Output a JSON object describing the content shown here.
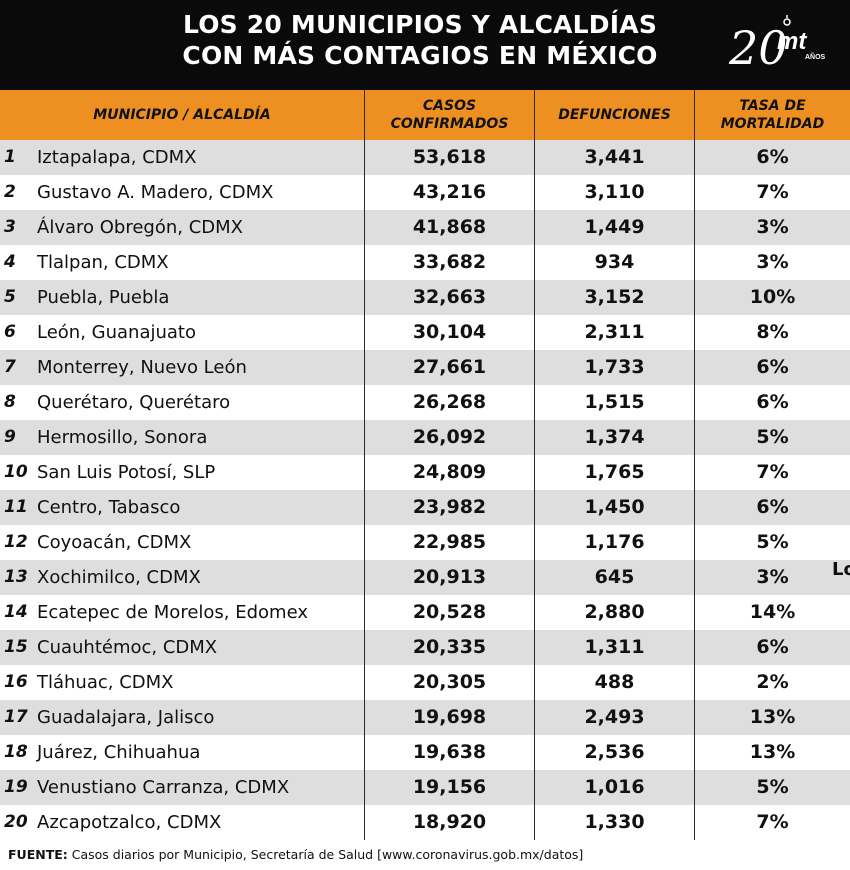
{
  "header": {
    "title_line1": "LOS 20 MUNICIPIOS Y ALCALDÍAS",
    "title_line2": "CON MÁS CONTAGIOS EN MÉXICO",
    "logo": {
      "number": "20",
      "brand": "mt",
      "caption": "AÑOS"
    }
  },
  "table": {
    "columns": [
      "MUNICIPIO / ALCALDÍA",
      "CASOS\nCONFIRMADOS",
      "DEFUNCIONES",
      "TASA DE\nMORTALIDAD"
    ],
    "rows": [
      {
        "rank": "1",
        "name": "Iztapalapa, CDMX",
        "cases": "53,618",
        "deaths": "3,441",
        "rate": "6%"
      },
      {
        "rank": "2",
        "name": "Gustavo A. Madero, CDMX",
        "cases": "43,216",
        "deaths": "3,110",
        "rate": "7%"
      },
      {
        "rank": "3",
        "name": "Álvaro Obregón, CDMX",
        "cases": "41,868",
        "deaths": "1,449",
        "rate": "3%"
      },
      {
        "rank": "4",
        "name": "Tlalpan, CDMX",
        "cases": "33,682",
        "deaths": "934",
        "rate": "3%"
      },
      {
        "rank": "5",
        "name": "Puebla, Puebla",
        "cases": "32,663",
        "deaths": "3,152",
        "rate": "10%"
      },
      {
        "rank": "6",
        "name": "León, Guanajuato",
        "cases": "30,104",
        "deaths": "2,311",
        "rate": "8%"
      },
      {
        "rank": "7",
        "name": "Monterrey, Nuevo León",
        "cases": "27,661",
        "deaths": "1,733",
        "rate": "6%"
      },
      {
        "rank": "8",
        "name": "Querétaro, Querétaro",
        "cases": "26,268",
        "deaths": "1,515",
        "rate": "6%"
      },
      {
        "rank": "9",
        "name": "Hermosillo, Sonora",
        "cases": "26,092",
        "deaths": "1,374",
        "rate": "5%"
      },
      {
        "rank": "10",
        "name": "San Luis Potosí, SLP",
        "cases": "24,809",
        "deaths": "1,765",
        "rate": "7%"
      },
      {
        "rank": "11",
        "name": "Centro, Tabasco",
        "cases": "23,982",
        "deaths": "1,450",
        "rate": "6%"
      },
      {
        "rank": "12",
        "name": "Coyoacán, CDMX",
        "cases": "22,985",
        "deaths": "1,176",
        "rate": "5%"
      },
      {
        "rank": "13",
        "name": "Xochimilco, CDMX",
        "cases": "20,913",
        "deaths": "645",
        "rate": "3%"
      },
      {
        "rank": "14",
        "name": "Ecatepec de Morelos, Edomex",
        "cases": "20,528",
        "deaths": "2,880",
        "rate": "14%"
      },
      {
        "rank": "15",
        "name": "Cuauhtémoc, CDMX",
        "cases": "20,335",
        "deaths": "1,311",
        "rate": "6%"
      },
      {
        "rank": "16",
        "name": "Tláhuac, CDMX",
        "cases": "20,305",
        "deaths": "488",
        "rate": "2%"
      },
      {
        "rank": "17",
        "name": "Guadalajara, Jalisco",
        "cases": "19,698",
        "deaths": "2,493",
        "rate": "13%"
      },
      {
        "rank": "18",
        "name": "Juárez, Chihuahua",
        "cases": "19,638",
        "deaths": "2,536",
        "rate": "13%"
      },
      {
        "rank": "19",
        "name": "Venustiano Carranza, CDMX",
        "cases": "19,156",
        "deaths": "1,016",
        "rate": "5%"
      },
      {
        "rank": "20",
        "name": "Azcapotzalco, CDMX",
        "cases": "18,920",
        "deaths": "1,330",
        "rate": "7%"
      }
    ]
  },
  "edge_text": "Lo",
  "footer": {
    "label": "FUENTE:",
    "text": " Casos diarios por Municipio, Secretaría de Salud [www.coronavirus.gob.mx/datos]"
  }
}
